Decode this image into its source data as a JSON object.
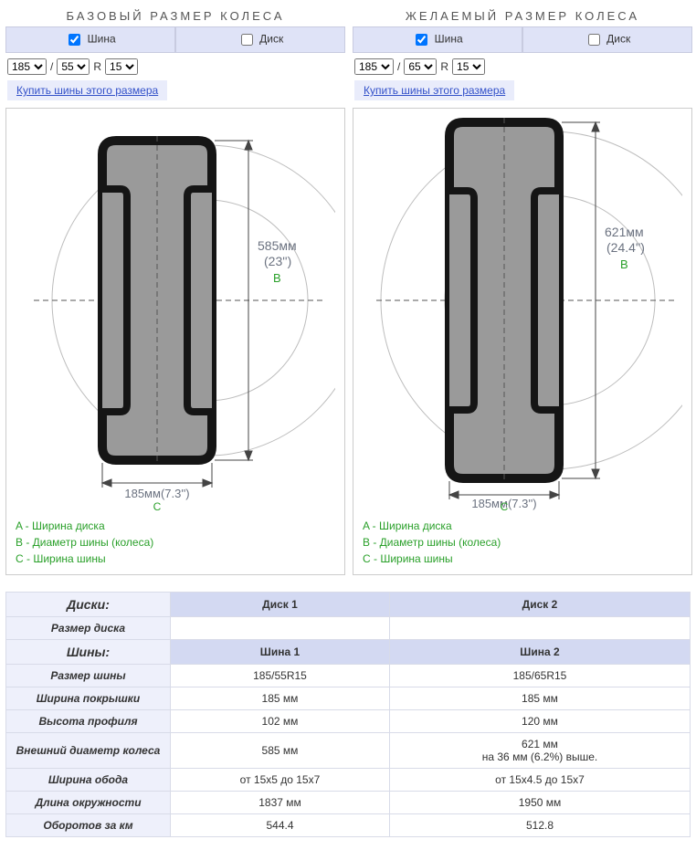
{
  "left": {
    "title": "БАЗОВЫЙ РАЗМЕР КОЛЕСА",
    "tab_tire": "Шина",
    "tab_disk": "Диск",
    "tire_checked": true,
    "disk_checked": false,
    "width_sel": "185",
    "aspect_sel": "55",
    "r_label": "R",
    "rim_sel": "15",
    "buy_link": "Купить шины этого размера",
    "diagram": {
      "diameter_mm": "585мм",
      "diameter_in": "(23'')",
      "width_mm": "185мм",
      "width_in": "(7.3'')",
      "marker_b": "B",
      "marker_c": "C"
    },
    "legend_a": "A - Ширина диска",
    "legend_b": "B - Диаметр шины (колеса)",
    "legend_c": "C - Ширина шины"
  },
  "right": {
    "title": "ЖЕЛАЕМЫЙ РАЗМЕР КОЛЕСА",
    "tab_tire": "Шина",
    "tab_disk": "Диск",
    "tire_checked": true,
    "disk_checked": false,
    "width_sel": "185",
    "aspect_sel": "65",
    "r_label": "R",
    "rim_sel": "15",
    "buy_link": "Купить шины этого размера",
    "diagram": {
      "diameter_mm": "621мм",
      "diameter_in": "(24.4'')",
      "width_mm": "185мм",
      "width_in": "(7.3'')",
      "marker_b": "B",
      "marker_c": "C"
    },
    "legend_a": "A - Ширина диска",
    "legend_b": "B - Диаметр шины (колеса)",
    "legend_c": "C - Ширина шины"
  },
  "table": {
    "disks_label": "Диски:",
    "disk1": "Диск 1",
    "disk2": "Диск 2",
    "disk_size_label": "Размер диска",
    "disk_size_1": "",
    "disk_size_2": "",
    "tires_label": "Шины:",
    "tire1": "Шина 1",
    "tire2": "Шина 2",
    "rows": [
      {
        "label": "Размер шины",
        "v1": "185/55R15",
        "v2": "185/65R15"
      },
      {
        "label": "Ширина покрышки",
        "v1": "185 мм",
        "v2": "185 мм"
      },
      {
        "label": "Высота профиля",
        "v1": "102 мм",
        "v2": "120 мм"
      },
      {
        "label": "Внешний диаметр колеса",
        "v1": "585 мм",
        "v2": "621 мм\nна 36 мм (6.2%) выше."
      },
      {
        "label": "Ширина обода",
        "v1": "от 15x5 до 15x7",
        "v2": "от 15x4.5 до 15x7"
      },
      {
        "label": "Длина окружности",
        "v1": "1837 мм",
        "v2": "1950 мм"
      },
      {
        "label": "Оборотов за км",
        "v1": "544.4",
        "v2": "512.8"
      }
    ]
  },
  "style": {
    "tire_outline": "#1a1a1a",
    "tire_fill": "#9a9a9a",
    "tire_mid": "#7f7f7f",
    "circle_stroke": "#b8b8b8",
    "dim_stroke": "#444",
    "text_dim": "#6b7280",
    "text_green": "#2aa02a"
  }
}
